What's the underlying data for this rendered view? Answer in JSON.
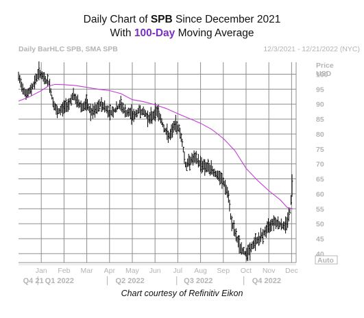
{
  "title": {
    "line1_prefix": "Daily Chart of ",
    "line1_ticker": "SPB",
    "line1_suffix": " Since December 2021",
    "line2_prefix": "With ",
    "line2_highlight": "100-Day",
    "line2_suffix": " Moving Average"
  },
  "header": {
    "left": "Daily BarHLC SPB, SMA SPB",
    "right": "12/3/2021 - 12/21/2022 (NYC)"
  },
  "credit": "Chart courtesy of Refinitiv Eikon",
  "colors": {
    "bars": "#000000",
    "sma": "#c43ad8",
    "grid": "#8c8c8c",
    "muted_text": "#b4b4b4",
    "highlight": "#7a2fc0"
  },
  "chart_data": {
    "type": "line",
    "yaxis": {
      "title_lines": [
        "Price",
        "USD"
      ],
      "ticks": [
        40,
        45,
        50,
        55,
        60,
        65,
        70,
        75,
        80,
        85,
        90,
        95,
        100
      ],
      "range": [
        37,
        104
      ],
      "auto_label": "Auto"
    },
    "xaxis": {
      "months": [
        {
          "label": "Jan",
          "pos": 1
        },
        {
          "label": "Feb",
          "pos": 2
        },
        {
          "label": "Mar",
          "pos": 3
        },
        {
          "label": "Apr",
          "pos": 4
        },
        {
          "label": "May",
          "pos": 5
        },
        {
          "label": "Jun",
          "pos": 6
        },
        {
          "label": "Jul",
          "pos": 7
        },
        {
          "label": "Aug",
          "pos": 8
        },
        {
          "label": "Sep",
          "pos": 9
        },
        {
          "label": "Oct",
          "pos": 10
        },
        {
          "label": "Nov",
          "pos": 11
        },
        {
          "label": "Dec",
          "pos": 12
        }
      ],
      "quarters": [
        {
          "label": "Q4 21",
          "pos": 0.2
        },
        {
          "label": "Q1 2022",
          "pos": 1.8
        },
        {
          "label": "Q2 2022",
          "pos": 4.9
        },
        {
          "label": "Q3 2022",
          "pos": 7.9
        },
        {
          "label": "Q4 2022",
          "pos": 10.9
        }
      ],
      "range": [
        0,
        12.2
      ]
    },
    "price_path": [
      [
        0.0,
        99
      ],
      [
        0.15,
        96
      ],
      [
        0.35,
        93
      ],
      [
        0.55,
        95
      ],
      [
        0.75,
        98
      ],
      [
        0.9,
        101
      ],
      [
        1.05,
        99
      ],
      [
        1.2,
        98
      ],
      [
        1.35,
        97
      ],
      [
        1.5,
        91
      ],
      [
        1.7,
        87
      ],
      [
        1.85,
        88
      ],
      [
        2.0,
        89
      ],
      [
        2.2,
        90
      ],
      [
        2.4,
        93
      ],
      [
        2.55,
        91
      ],
      [
        2.8,
        89
      ],
      [
        3.0,
        90
      ],
      [
        3.2,
        87
      ],
      [
        3.4,
        88
      ],
      [
        3.6,
        90
      ],
      [
        3.8,
        89
      ],
      [
        4.0,
        87
      ],
      [
        4.25,
        88
      ],
      [
        4.5,
        90
      ],
      [
        4.7,
        87
      ],
      [
        4.9,
        87
      ],
      [
        5.1,
        86
      ],
      [
        5.3,
        88
      ],
      [
        5.55,
        87
      ],
      [
        5.75,
        85
      ],
      [
        6.0,
        87
      ],
      [
        6.1,
        88
      ],
      [
        6.25,
        85
      ],
      [
        6.45,
        81
      ],
      [
        6.65,
        79
      ],
      [
        6.85,
        83
      ],
      [
        7.05,
        82
      ],
      [
        7.2,
        77
      ],
      [
        7.35,
        69
      ],
      [
        7.5,
        71
      ],
      [
        7.75,
        72
      ],
      [
        8.0,
        70
      ],
      [
        8.25,
        69
      ],
      [
        8.5,
        68
      ],
      [
        8.75,
        66
      ],
      [
        9.0,
        64
      ],
      [
        9.2,
        60
      ],
      [
        9.35,
        51
      ],
      [
        9.55,
        46
      ],
      [
        9.75,
        42
      ],
      [
        9.95,
        40
      ],
      [
        10.15,
        41
      ],
      [
        10.4,
        44
      ],
      [
        10.6,
        45
      ],
      [
        10.8,
        47
      ],
      [
        11.0,
        49
      ],
      [
        11.2,
        51
      ],
      [
        11.45,
        50
      ],
      [
        11.7,
        49
      ],
      [
        11.85,
        52
      ],
      [
        11.95,
        55
      ],
      [
        12.02,
        64
      ]
    ],
    "sma100": [
      [
        0.0,
        91
      ],
      [
        0.5,
        92.5
      ],
      [
        1.0,
        94.5
      ],
      [
        1.3,
        96
      ],
      [
        1.6,
        96.6
      ],
      [
        2.0,
        96.5
      ],
      [
        2.5,
        96.2
      ],
      [
        3.0,
        95.6
      ],
      [
        3.5,
        95.0
      ],
      [
        4.0,
        94.5
      ],
      [
        4.5,
        93.5
      ],
      [
        5.0,
        91.5
      ],
      [
        5.5,
        90.8
      ],
      [
        6.0,
        89.8
      ],
      [
        6.5,
        88.5
      ],
      [
        7.0,
        86.8
      ],
      [
        7.5,
        85.2
      ],
      [
        8.0,
        83.6
      ],
      [
        8.5,
        81.5
      ],
      [
        9.0,
        78.5
      ],
      [
        9.5,
        74.5
      ],
      [
        10.0,
        68.5
      ],
      [
        10.5,
        64.5
      ],
      [
        11.0,
        61.0
      ],
      [
        11.5,
        58.0
      ],
      [
        11.8,
        55.5
      ],
      [
        12.05,
        55.0
      ]
    ]
  }
}
